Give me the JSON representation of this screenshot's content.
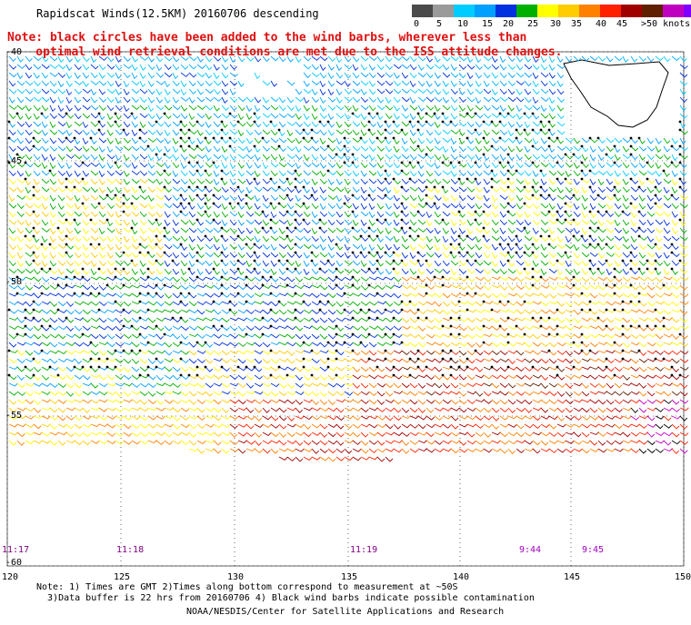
{
  "header": {
    "title": "Rapidscat Winds(12.5KM) 20160706 descending",
    "note_line1": "Note: black circles have been added to the wind barbs, wherever less than",
    "note_line2": "    optimal wind retrieval conditions are met due to the ISS attitude changes."
  },
  "colorbar": {
    "colors": [
      "#4a4a4a",
      "#9a9a9a",
      "#00ccff",
      "#00a0ff",
      "#0030e0",
      "#00b000",
      "#ffff00",
      "#ffcc00",
      "#ff8000",
      "#ff2000",
      "#a00000",
      "#602000",
      "#c000c0",
      "#8000ff",
      "#300090"
    ],
    "labels": [
      "0",
      "5",
      "10",
      "15",
      "20",
      "25",
      "30",
      "35",
      "40",
      "45",
      ">50 knots"
    ]
  },
  "map": {
    "lon_ticks": [
      "120",
      "125",
      "130",
      "135",
      "140",
      "145",
      "150"
    ],
    "lat_ticks": [
      "-40",
      "-45",
      "-50",
      "-55",
      "-60"
    ],
    "times": [
      {
        "label": "11:17",
        "color": "#800080"
      },
      {
        "label": "11:18",
        "color": "#800080"
      },
      {
        "label": "11:19",
        "color": "#800080"
      },
      {
        "label": "9:44",
        "color": "#a000c0"
      },
      {
        "label": "9:45",
        "color": "#a000c0"
      }
    ],
    "land": "Tasmania"
  },
  "footer": {
    "note1": "Note: 1) Times are GMT 2)Times along bottom correspond to measurement at ~50S",
    "note2": "  3)Data buffer is 22 hrs from 20160706 4) Black wind barbs indicate possible contamination",
    "credit": "NOAA/NESDIS/Center for Satellite Applications and Research"
  }
}
